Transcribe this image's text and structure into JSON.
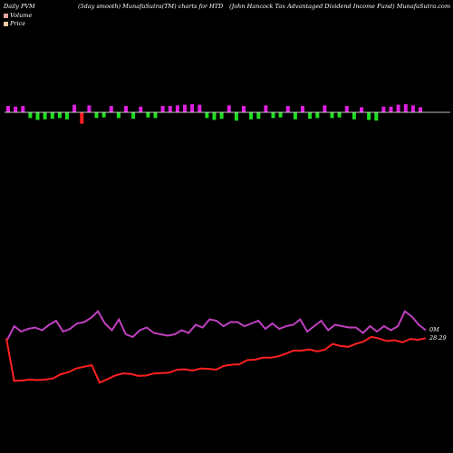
{
  "header": {
    "left": "Daily PVM",
    "middle": "(5day smooth) MunafaSutra(TM) charts for HTD",
    "right": "(John  Hancock Tax Advantaged Dividend Income  Fund) MunafaSutra.com"
  },
  "legend": {
    "volume_label": "Volume",
    "price_label": "Price",
    "volume_color": "#e8a0a0",
    "price_color": "#f5c9a0"
  },
  "colors": {
    "background": "#000000",
    "bar_up": "#e020e0",
    "bar_down": "#20e020",
    "bar_highlight": "#ff2020",
    "price_line": "#ff2020",
    "volume_line": "#c040c0",
    "baseline": "#ffffff"
  },
  "chart_data": {
    "type": "line",
    "title": "Daily PVM",
    "last_volume_label": "0M",
    "last_price_label": "28.29",
    "price": {
      "name": "Price",
      "values": [
        28.29,
        18.0,
        18.1,
        18.3,
        18.2,
        18.3,
        18.6,
        19.6,
        20.1,
        21.0,
        21.4,
        21.8,
        17.6,
        18.4,
        19.3,
        19.8,
        19.7,
        19.2,
        19.3,
        19.8,
        19.9,
        20.0,
        20.7,
        20.8,
        20.5,
        21.0,
        20.9,
        20.7,
        21.6,
        21.9,
        22.0,
        23.0,
        23.1,
        23.6,
        23.6,
        23.9,
        24.6,
        25.3,
        25.3,
        25.6,
        25.1,
        25.5,
        26.9,
        26.4,
        26.2,
        26.9,
        27.5,
        28.6,
        28.2,
        27.6,
        27.8,
        27.3,
        28.1,
        27.9,
        28.29
      ],
      "color": "#ff2020"
    },
    "volume_line": {
      "name": "Volume",
      "values": [
        40,
        50,
        46,
        48,
        49,
        47,
        51,
        54,
        46,
        48,
        52,
        53,
        56,
        61,
        52,
        47,
        55,
        44,
        42,
        47,
        49,
        45,
        44,
        43,
        44,
        47,
        45,
        51,
        49,
        55,
        54,
        50,
        53,
        53,
        50,
        52,
        54,
        48,
        52,
        48,
        50,
        51,
        55,
        46,
        50,
        54,
        47,
        51,
        50,
        49,
        49,
        45,
        50,
        46,
        50,
        47,
        50,
        61,
        57,
        51,
        47
      ],
      "color": "#c040c0"
    },
    "volume_bars": {
      "name": "Volume",
      "values": [
        1.0,
        0.9,
        1.0,
        -0.9,
        -1.2,
        -1.1,
        -1.0,
        -0.9,
        -1.1,
        1.2,
        -1.8,
        1.1,
        -0.9,
        -0.8,
        1.0,
        -0.9,
        1.0,
        -1.0,
        0.9,
        -0.8,
        -0.9,
        1.0,
        1.0,
        1.1,
        1.2,
        1.3,
        1.2,
        -0.9,
        -1.2,
        -1.0,
        1.1,
        -1.3,
        1.0,
        -1.1,
        -1.0,
        1.1,
        -0.9,
        -0.8,
        1.0,
        -1.1,
        1.0,
        -1.0,
        -0.9,
        1.1,
        -0.9,
        -0.8,
        1.0,
        -1.1,
        0.8,
        -1.2,
        -1.3,
        0.9,
        0.9,
        1.2,
        1.3,
        1.1,
        0.8
      ],
      "highlight_index": 10,
      "note": "positive = above baseline (up day), negative = below baseline (down day)"
    }
  }
}
